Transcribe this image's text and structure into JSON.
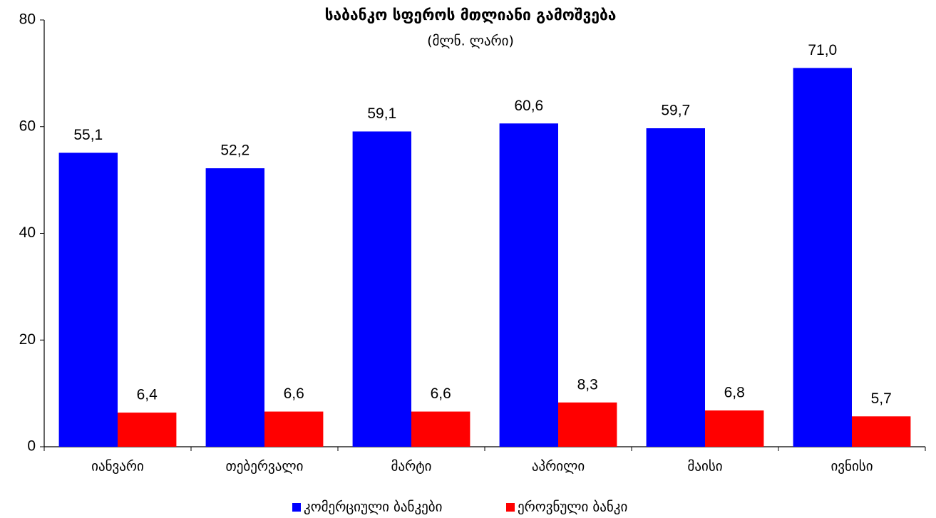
{
  "chart_data": {
    "type": "bar",
    "title": "საბანკო სფეროს მთლიანი გამოშვება",
    "subtitle": "(მლნ. ლარი)",
    "categories": [
      "იანვარი",
      "თებერვალი",
      "მარტი",
      "აპრილი",
      "მაისი",
      "ივნისი"
    ],
    "series": [
      {
        "name": "კომერციული ბანკები",
        "color": "#0000ff",
        "values": [
          55.1,
          52.2,
          59.1,
          60.6,
          59.7,
          71.0
        ],
        "value_labels": [
          "55,1",
          "52,2",
          "59,1",
          "60,6",
          "59,7",
          "71,0"
        ]
      },
      {
        "name": "ეროვნული ბანკი",
        "color": "#ff0000",
        "values": [
          6.4,
          6.6,
          6.6,
          8.3,
          6.8,
          5.7
        ],
        "value_labels": [
          "6,4",
          "6,6",
          "6,6",
          "8,3",
          "6,8",
          "5,7"
        ]
      }
    ],
    "ylim": [
      0,
      80
    ],
    "yticks": [
      0,
      20,
      40,
      60,
      80
    ],
    "legend": "bottom"
  }
}
